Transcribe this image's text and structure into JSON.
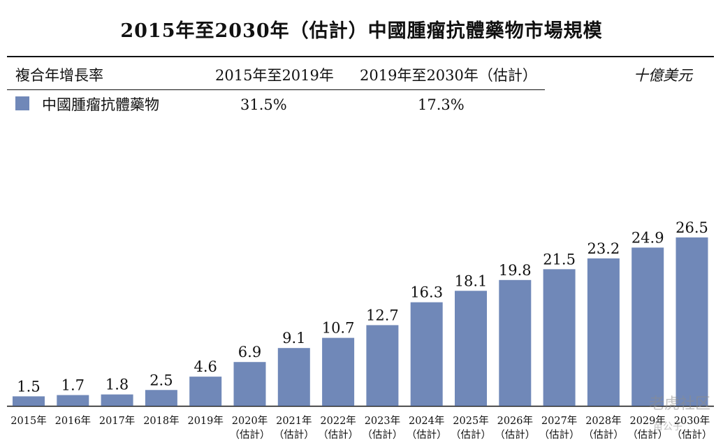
{
  "title": "2015年至2030年（估計）中國腫瘤抗體藥物市場規模",
  "table": {
    "row_label": "複合年增長率",
    "period1": "2015年至2019年",
    "period2": "2019年至2030年（估計）",
    "unit": "十億美元",
    "series_label": "中國腫瘤抗體藥物",
    "rate1": "31.5%",
    "rate2": "17.3%"
  },
  "watermark": "老虎社区",
  "watermark_sub": "苗公子",
  "chart_data": {
    "type": "bar",
    "title": "2015年至2030年（估計）中國腫瘤抗體藥物市場規模",
    "ylabel": "十億美元",
    "categories": [
      "2015年",
      "2016年",
      "2017年",
      "2018年",
      "2019年",
      "2020年",
      "2021年",
      "2022年",
      "2023年",
      "2024年",
      "2025年",
      "2026年",
      "2027年",
      "2028年",
      "2029年",
      "2030年"
    ],
    "sublabels": [
      "",
      "",
      "",
      "",
      "",
      "（估計）",
      "（估計）",
      "（估計）",
      "（估計）",
      "（估計）",
      "（估計）",
      "（估計）",
      "（估計）",
      "（估計）",
      "（估計）",
      "（估計）"
    ],
    "series": [
      {
        "name": "中國腫瘤抗體藥物",
        "values": [
          1.5,
          1.7,
          1.8,
          2.5,
          4.6,
          6.9,
          9.1,
          10.7,
          12.7,
          16.3,
          18.1,
          19.8,
          21.5,
          23.2,
          24.9,
          26.5
        ],
        "color": "#7088b8"
      }
    ],
    "value_labels": [
      "1.5",
      "1.7",
      "1.8",
      "2.5",
      "4.6",
      "6.9",
      "9.1",
      "10.7",
      "12.7",
      "16.3",
      "18.1",
      "19.8",
      "21.5",
      "23.2",
      "24.9",
      "26.5"
    ],
    "grid": false,
    "legend": "top-left"
  }
}
